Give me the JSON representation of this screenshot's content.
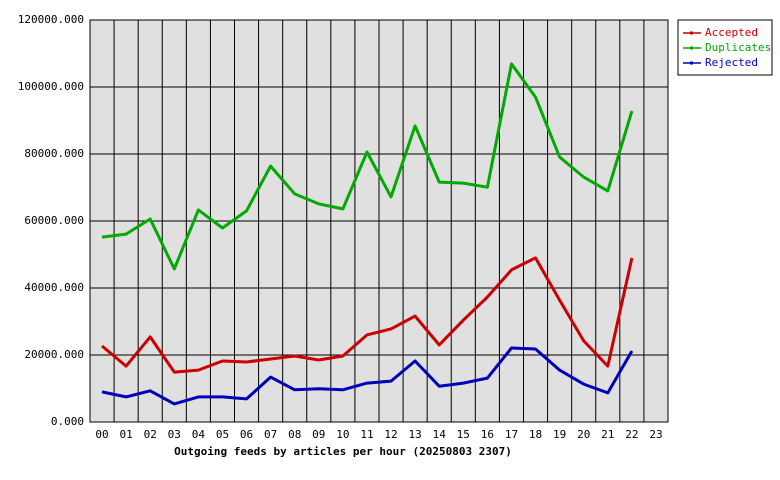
{
  "chart_data": {
    "type": "line",
    "title": "Outgoing feeds by articles per hour (20250803 2307)",
    "categories": [
      "00",
      "01",
      "02",
      "03",
      "04",
      "05",
      "06",
      "07",
      "08",
      "09",
      "10",
      "11",
      "12",
      "13",
      "14",
      "15",
      "16",
      "17",
      "18",
      "19",
      "20",
      "21",
      "22",
      "23"
    ],
    "series": [
      {
        "name": "Accepted",
        "color": "#cc0000",
        "values": [
          22700,
          16700,
          25400,
          14900,
          15500,
          18200,
          17900,
          18800,
          19700,
          18500,
          19700,
          26000,
          27800,
          31600,
          23000,
          30400,
          37300,
          45400,
          49000,
          36400,
          24200,
          16700,
          49000,
          null
        ]
      },
      {
        "name": "Duplicates",
        "color": "#00aa00",
        "values": [
          55200,
          56100,
          60600,
          45700,
          63300,
          57900,
          63000,
          76400,
          68100,
          65100,
          63600,
          80600,
          67200,
          88400,
          71600,
          71300,
          70100,
          106900,
          97000,
          79100,
          73100,
          69000,
          92800,
          null
        ]
      },
      {
        "name": "Rejected",
        "color": "#0000bb",
        "values": [
          9000,
          7500,
          9300,
          5400,
          7500,
          7500,
          6900,
          13400,
          9600,
          9900,
          9600,
          11600,
          12200,
          18200,
          10700,
          11600,
          13100,
          22100,
          21800,
          15500,
          11300,
          8700,
          21200,
          null
        ]
      }
    ],
    "ylim": [
      0,
      120000
    ],
    "yticks": [
      {
        "value": 0,
        "label": "0.000"
      },
      {
        "value": 20000,
        "label": "20000.000"
      },
      {
        "value": 40000,
        "label": "40000.000"
      },
      {
        "value": 60000,
        "label": "60000.000"
      },
      {
        "value": 80000,
        "label": "80000.000"
      },
      {
        "value": 100000,
        "label": "100000.000"
      },
      {
        "value": 120000,
        "label": "120000.000"
      }
    ],
    "grid": true,
    "legend": "top-right"
  }
}
